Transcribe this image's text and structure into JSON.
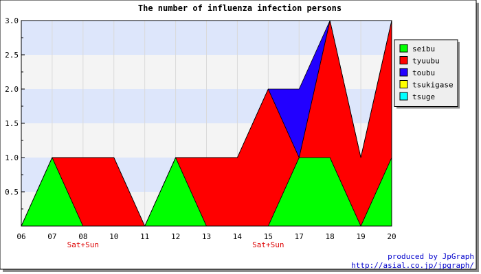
{
  "chart_data": {
    "type": "area",
    "stacked": true,
    "title": "The number of influenza infection persons",
    "categories": [
      "06",
      "07",
      "08",
      "10",
      "11",
      "12",
      "13",
      "14",
      "15",
      "17",
      "18",
      "19",
      "20"
    ],
    "weekend_marks": [
      {
        "category": "08",
        "label": "Sat+Sun"
      },
      {
        "category": "15",
        "label": "Sat+Sun"
      }
    ],
    "ylim": [
      0,
      3
    ],
    "yticks": [
      "0.5",
      "1.0",
      "1.5",
      "2.0",
      "2.5",
      "3.0"
    ],
    "legend_position": "right",
    "series": [
      {
        "name": "seibu",
        "color": "#00ff00",
        "values": [
          0,
          1,
          0,
          0,
          0,
          1,
          0,
          0,
          0,
          1,
          1,
          0,
          1
        ]
      },
      {
        "name": "tyuubu",
        "color": "#ff0000",
        "values": [
          0,
          0,
          1,
          1,
          0,
          0,
          1,
          1,
          2,
          0,
          2,
          1,
          2
        ]
      },
      {
        "name": "toubu",
        "color": "#2200ff",
        "values": [
          0,
          0,
          0,
          0,
          0,
          0,
          0,
          0,
          0,
          1,
          0,
          0,
          0
        ]
      },
      {
        "name": "tsukigase",
        "color": "#ffff00",
        "values": [
          0,
          0,
          0,
          0,
          0,
          0,
          0,
          0,
          0,
          0,
          0,
          0,
          0
        ]
      },
      {
        "name": "tsuge",
        "color": "#00ffff",
        "values": [
          0,
          0,
          0,
          0,
          0,
          0,
          0,
          0,
          0,
          0,
          0,
          0,
          0
        ]
      }
    ],
    "band_colors": [
      "#f4f4f4",
      "#dde6fb"
    ]
  },
  "credit": {
    "line1": "produced by JpGraph",
    "line2": "http://asial.co.jp/jpgraph/"
  }
}
